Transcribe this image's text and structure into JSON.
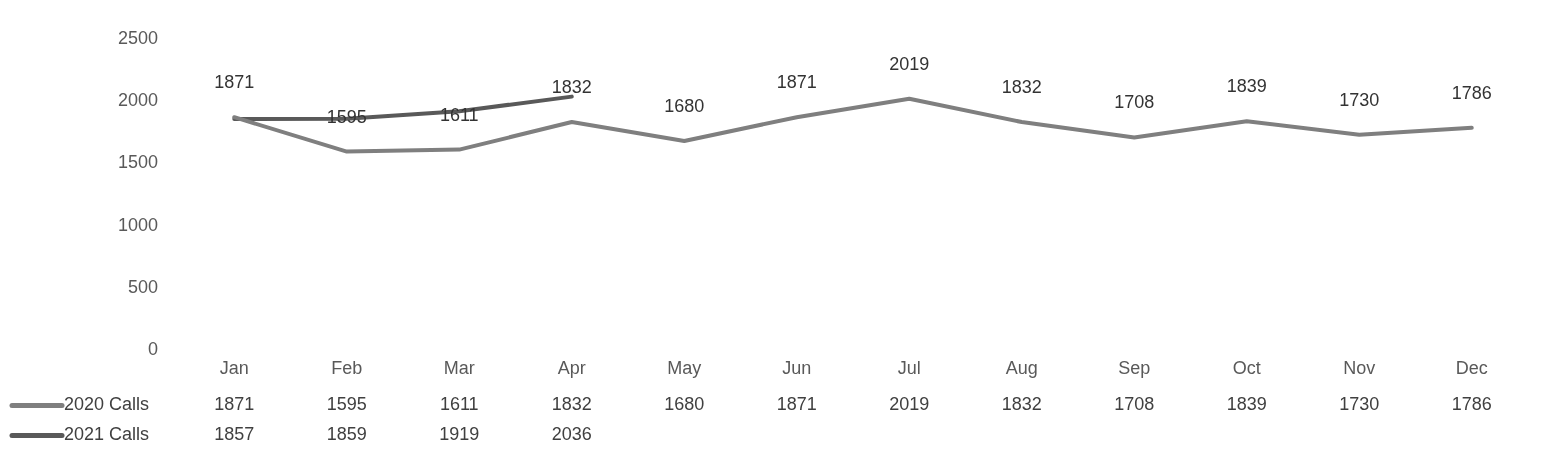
{
  "chart_data": {
    "type": "line",
    "categories": [
      "Jan",
      "Feb",
      "Mar",
      "Apr",
      "May",
      "Jun",
      "Jul",
      "Aug",
      "Sep",
      "Oct",
      "Nov",
      "Dec"
    ],
    "series": [
      {
        "name": "2020 Calls",
        "color": "#7f7f7f",
        "values": [
          1871,
          1595,
          1611,
          1832,
          1680,
          1871,
          2019,
          1832,
          1708,
          1839,
          1730,
          1786
        ]
      },
      {
        "name": "2021 Calls",
        "color": "#595959",
        "values": [
          1857,
          1859,
          1919,
          2036,
          null,
          null,
          null,
          null,
          null,
          null,
          null,
          null
        ]
      }
    ],
    "ylim": [
      0,
      2500
    ],
    "yticks": [
      0,
      500,
      1000,
      1500,
      2000,
      2500
    ],
    "annotations": [
      {
        "text": "1871",
        "x": "Jan",
        "y": 1871
      },
      {
        "text": "1595",
        "x": "Feb",
        "y": 1595
      },
      {
        "text": "1611",
        "x": "Mar",
        "y": 1611
      },
      {
        "text": "1832",
        "x": "Apr",
        "y": 1832
      },
      {
        "text": "1680",
        "x": "May",
        "y": 1680
      },
      {
        "text": "1871",
        "x": "Jun",
        "y": 1871
      },
      {
        "text": "2019",
        "x": "Jul",
        "y": 2019
      },
      {
        "text": "1832",
        "x": "Aug",
        "y": 1832
      },
      {
        "text": "1708",
        "x": "Sep",
        "y": 1708
      },
      {
        "text": "1839",
        "x": "Oct",
        "y": 1839
      },
      {
        "text": "1730",
        "x": "Nov",
        "y": 1730
      },
      {
        "text": "1786",
        "x": "Dec",
        "y": 1786
      }
    ],
    "grid": false,
    "legend": "bottom",
    "marker": "none",
    "line_style": "solid",
    "data_labels": true
  }
}
